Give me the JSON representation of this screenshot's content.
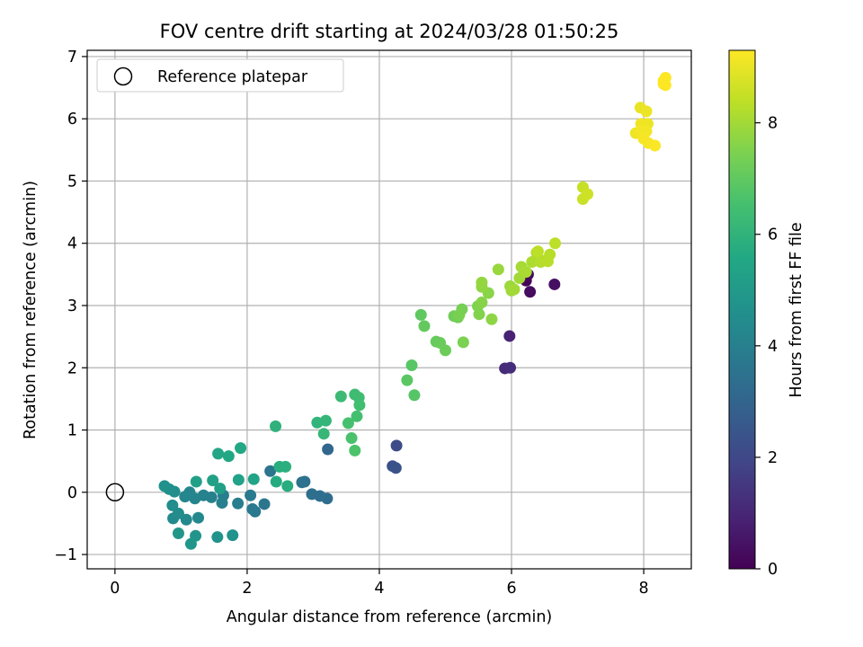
{
  "chart_data": {
    "type": "scatter",
    "title": "FOV centre drift starting at 2024/03/28 01:50:25",
    "xlabel": "Angular distance from reference (arcmin)",
    "ylabel": "Rotation from reference (arcmin)",
    "xlim": [
      -0.42,
      8.72
    ],
    "ylim": [
      -1.23,
      7.1
    ],
    "xticks": [
      0,
      2,
      4,
      6,
      8
    ],
    "yticks": [
      -1,
      0,
      1,
      2,
      3,
      4,
      5,
      6,
      7
    ],
    "grid": true,
    "legend": {
      "placement": "upper-left",
      "entries": [
        "Reference platepar"
      ]
    },
    "reference_point": {
      "x": 0,
      "y": 0,
      "marker": "hollow-circle"
    },
    "colorbar": {
      "label": "Hours from first FF file",
      "colormap": "viridis",
      "range": [
        0,
        9.3
      ],
      "ticks": [
        0,
        2,
        4,
        6,
        8
      ]
    },
    "points": [
      [
        6.22,
        3.4,
        0.1
      ],
      [
        6.25,
        3.5,
        0.2
      ],
      [
        6.18,
        3.45,
        0.15
      ],
      [
        6.28,
        3.22,
        0.3
      ],
      [
        6.65,
        3.34,
        0.4
      ],
      [
        5.97,
        2.51,
        0.9
      ],
      [
        5.9,
        1.99,
        1.1
      ],
      [
        5.98,
        2.0,
        1.2
      ],
      [
        4.26,
        0.75,
        2.1
      ],
      [
        4.2,
        0.42,
        2.3
      ],
      [
        4.25,
        0.39,
        2.4
      ],
      [
        3.22,
        0.69,
        3.1
      ],
      [
        3.21,
        -0.1,
        3.3
      ],
      [
        3.1,
        -0.06,
        3.35
      ],
      [
        2.98,
        -0.03,
        3.4
      ],
      [
        2.87,
        0.17,
        3.45
      ],
      [
        2.83,
        0.16,
        3.5
      ],
      [
        2.35,
        0.34,
        3.6
      ],
      [
        2.26,
        -0.19,
        3.65
      ],
      [
        2.12,
        -0.31,
        3.7
      ],
      [
        2.08,
        -0.27,
        3.75
      ],
      [
        2.05,
        -0.05,
        3.8
      ],
      [
        1.86,
        -0.18,
        3.9
      ],
      [
        1.64,
        -0.05,
        3.95
      ],
      [
        1.62,
        -0.17,
        4.0
      ],
      [
        1.46,
        -0.08,
        4.05
      ],
      [
        1.34,
        -0.05,
        4.1
      ],
      [
        1.21,
        -0.1,
        4.15
      ],
      [
        1.13,
        0.0,
        4.2
      ],
      [
        1.06,
        -0.07,
        4.25
      ],
      [
        1.26,
        -0.41,
        4.3
      ],
      [
        1.08,
        -0.44,
        4.35
      ],
      [
        0.88,
        -0.42,
        4.4
      ],
      [
        0.96,
        -0.34,
        4.45
      ],
      [
        0.87,
        -0.21,
        4.5
      ],
      [
        0.9,
        0.01,
        4.55
      ],
      [
        0.82,
        0.05,
        4.6
      ],
      [
        0.75,
        0.1,
        4.65
      ],
      [
        1.78,
        -0.69,
        4.7
      ],
      [
        1.55,
        -0.72,
        4.75
      ],
      [
        1.22,
        -0.7,
        4.8
      ],
      [
        1.15,
        -0.83,
        4.85
      ],
      [
        0.96,
        -0.66,
        4.9
      ],
      [
        1.59,
        0.06,
        5.2
      ],
      [
        1.23,
        0.17,
        5.25
      ],
      [
        1.48,
        0.19,
        5.3
      ],
      [
        1.87,
        0.2,
        5.35
      ],
      [
        2.1,
        0.21,
        5.4
      ],
      [
        1.56,
        0.62,
        5.5
      ],
      [
        1.72,
        0.58,
        5.55
      ],
      [
        1.9,
        0.71,
        5.6
      ],
      [
        2.44,
        0.17,
        5.7
      ],
      [
        2.61,
        0.1,
        5.75
      ],
      [
        2.49,
        0.41,
        5.8
      ],
      [
        2.58,
        0.41,
        5.85
      ],
      [
        2.43,
        1.06,
        5.95
      ],
      [
        3.06,
        1.12,
        6.05
      ],
      [
        3.19,
        1.15,
        6.1
      ],
      [
        3.16,
        0.94,
        6.15
      ],
      [
        3.42,
        1.54,
        6.3
      ],
      [
        3.63,
        1.57,
        6.35
      ],
      [
        3.69,
        1.52,
        6.4
      ],
      [
        3.7,
        1.4,
        6.45
      ],
      [
        3.66,
        1.22,
        6.5
      ],
      [
        3.53,
        1.11,
        6.55
      ],
      [
        3.58,
        0.87,
        6.6
      ],
      [
        3.63,
        0.67,
        6.65
      ],
      [
        4.53,
        1.56,
        6.8
      ],
      [
        4.49,
        2.04,
        6.85
      ],
      [
        4.42,
        1.8,
        6.9
      ],
      [
        4.63,
        2.85,
        7.0
      ],
      [
        4.68,
        2.67,
        7.05
      ],
      [
        4.86,
        2.42,
        7.1
      ],
      [
        4.92,
        2.4,
        7.15
      ],
      [
        5.0,
        2.28,
        7.2
      ],
      [
        5.13,
        2.83,
        7.25
      ],
      [
        5.19,
        2.81,
        7.3
      ],
      [
        5.25,
        2.94,
        7.35
      ],
      [
        5.21,
        2.85,
        7.4
      ],
      [
        5.27,
        2.41,
        7.45
      ],
      [
        5.49,
        2.99,
        7.5
      ],
      [
        5.51,
        2.86,
        7.55
      ],
      [
        5.55,
        3.05,
        7.6
      ],
      [
        5.65,
        3.2,
        7.65
      ],
      [
        5.7,
        2.78,
        7.7
      ],
      [
        5.55,
        3.3,
        7.75
      ],
      [
        5.55,
        3.37,
        7.8
      ],
      [
        5.8,
        3.58,
        7.85
      ],
      [
        5.98,
        3.31,
        7.9
      ],
      [
        6.0,
        3.24,
        7.95
      ],
      [
        6.04,
        3.26,
        8.0
      ],
      [
        6.12,
        3.44,
        8.0
      ],
      [
        6.15,
        3.62,
        8.05
      ],
      [
        6.22,
        3.54,
        8.1
      ],
      [
        6.31,
        3.7,
        8.15
      ],
      [
        6.38,
        3.85,
        8.2
      ],
      [
        6.44,
        3.7,
        8.25
      ],
      [
        6.48,
        3.72,
        8.25
      ],
      [
        6.55,
        3.71,
        8.3
      ],
      [
        6.58,
        3.82,
        8.3
      ],
      [
        6.66,
        4.0,
        8.35
      ],
      [
        6.4,
        3.87,
        8.35
      ],
      [
        7.08,
        4.9,
        8.5
      ],
      [
        7.08,
        4.71,
        8.55
      ],
      [
        7.15,
        4.79,
        8.6
      ],
      [
        7.95,
        6.18,
        9.0
      ],
      [
        8.04,
        6.12,
        9.05
      ],
      [
        8.06,
        5.92,
        9.05
      ],
      [
        7.96,
        5.92,
        9.1
      ],
      [
        7.88,
        5.77,
        9.1
      ],
      [
        7.96,
        5.8,
        9.15
      ],
      [
        8.04,
        5.8,
        9.15
      ],
      [
        8.0,
        5.68,
        9.2
      ],
      [
        8.07,
        5.61,
        9.2
      ],
      [
        8.17,
        5.57,
        9.25
      ],
      [
        8.3,
        6.61,
        9.25
      ],
      [
        8.33,
        6.66,
        9.3
      ],
      [
        8.3,
        6.56,
        9.3
      ],
      [
        8.33,
        6.54,
        9.3
      ]
    ]
  }
}
